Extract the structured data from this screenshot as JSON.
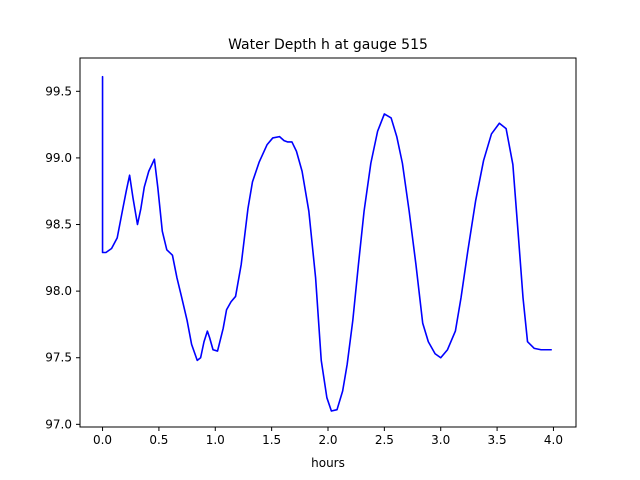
{
  "chart_data": {
    "type": "line",
    "title": "Water Depth h at gauge 515",
    "xlabel": "hours",
    "ylabel": "",
    "xlim": [
      -0.2,
      4.2
    ],
    "ylim": [
      96.98,
      99.75
    ],
    "xticks": [
      0.0,
      0.5,
      1.0,
      1.5,
      2.0,
      2.5,
      3.0,
      3.5,
      4.0
    ],
    "xtick_labels": [
      "0.0",
      "0.5",
      "1.0",
      "1.5",
      "2.0",
      "2.5",
      "3.0",
      "3.5",
      "4.0"
    ],
    "yticks": [
      97.0,
      97.5,
      98.0,
      98.5,
      99.0,
      99.5
    ],
    "ytick_labels": [
      "97.0",
      "97.5",
      "98.0",
      "98.5",
      "99.0",
      "99.5"
    ],
    "grid": false,
    "series": [
      {
        "color": "#0000ff",
        "x": [
          0.0,
          0.0,
          0.0,
          0.03,
          0.08,
          0.13,
          0.18,
          0.21,
          0.24,
          0.27,
          0.31,
          0.34,
          0.37,
          0.41,
          0.46,
          0.49,
          0.53,
          0.57,
          0.62,
          0.66,
          0.7,
          0.75,
          0.79,
          0.84,
          0.87,
          0.9,
          0.93,
          0.95,
          0.98,
          1.02,
          1.07,
          1.1,
          1.14,
          1.18,
          1.23,
          1.29,
          1.33,
          1.39,
          1.46,
          1.51,
          1.57,
          1.61,
          1.64,
          1.68,
          1.72,
          1.77,
          1.83,
          1.89,
          1.94,
          1.99,
          2.03,
          2.08,
          2.13,
          2.17,
          2.22,
          2.27,
          2.32,
          2.38,
          2.44,
          2.5,
          2.56,
          2.61,
          2.66,
          2.72,
          2.78,
          2.84,
          2.89,
          2.95,
          3.0,
          3.06,
          3.13,
          3.18,
          3.24,
          3.31,
          3.38,
          3.45,
          3.52,
          3.58,
          3.64,
          3.69,
          3.73,
          3.77,
          3.83,
          3.89,
          3.94,
          3.98
        ],
        "y": [
          99.61,
          98.55,
          98.29,
          98.29,
          98.32,
          98.4,
          98.62,
          98.75,
          98.87,
          98.7,
          98.5,
          98.62,
          98.78,
          98.9,
          98.99,
          98.78,
          98.45,
          98.31,
          98.27,
          98.1,
          97.96,
          97.78,
          97.6,
          97.48,
          97.5,
          97.62,
          97.7,
          97.65,
          97.56,
          97.55,
          97.72,
          97.86,
          97.92,
          97.96,
          98.2,
          98.62,
          98.82,
          98.97,
          99.1,
          99.15,
          99.16,
          99.13,
          99.12,
          99.12,
          99.05,
          98.9,
          98.6,
          98.1,
          97.48,
          97.2,
          97.1,
          97.11,
          97.25,
          97.45,
          97.78,
          98.2,
          98.6,
          98.96,
          99.2,
          99.33,
          99.3,
          99.16,
          98.96,
          98.6,
          98.2,
          97.76,
          97.62,
          97.53,
          97.5,
          97.56,
          97.7,
          97.95,
          98.3,
          98.68,
          98.98,
          99.18,
          99.26,
          99.22,
          98.95,
          98.4,
          97.95,
          97.62,
          97.57,
          97.56,
          97.56,
          97.56
        ]
      }
    ]
  }
}
